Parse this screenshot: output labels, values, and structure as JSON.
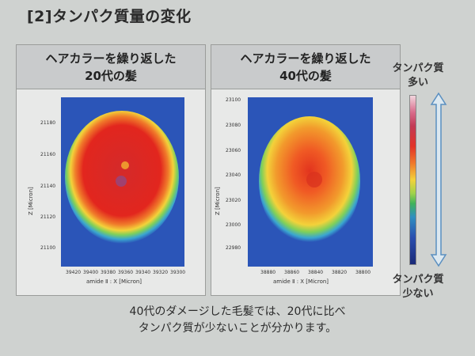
{
  "heading": "[2]タンパク質量の変化",
  "panels": [
    {
      "title_line1": "ヘアカラーを繰り返した",
      "title_line2": "20代の髪",
      "chart": {
        "type": "heatmap",
        "ylabel": "Z [Micron]",
        "xlabel": "amide Ⅱ : X [Micron]",
        "yticks": [
          "21180",
          "21160",
          "21140",
          "21120",
          "21100"
        ],
        "xticks": [
          "39420",
          "39400",
          "39380",
          "39360",
          "39340",
          "39320",
          "39300"
        ]
      }
    },
    {
      "title_line1": "ヘアカラーを繰り返した",
      "title_line2": "40代の髪",
      "chart": {
        "type": "heatmap",
        "ylabel": "Z [Micron]",
        "xlabel": "amide Ⅱ : X [Micron]",
        "yticks": [
          "23100",
          "23080",
          "23060",
          "23040",
          "23020",
          "23000",
          "22980"
        ],
        "xticks": [
          "38880",
          "38860",
          "38840",
          "38820",
          "38800"
        ]
      }
    }
  ],
  "legend": {
    "top_line1": "タンパク質",
    "top_line2": "多い",
    "bottom_line1": "タンパク質",
    "bottom_line2": "少ない"
  },
  "caption": {
    "line1": "40代のダメージした毛髪では、20代に比べ",
    "line2": "タンパク質が少ないことが分かります。"
  },
  "colors": {
    "background": "#cfd2d0",
    "high": "#e2241c",
    "mid": "#f3d23a",
    "low": "#2a4fb0"
  }
}
